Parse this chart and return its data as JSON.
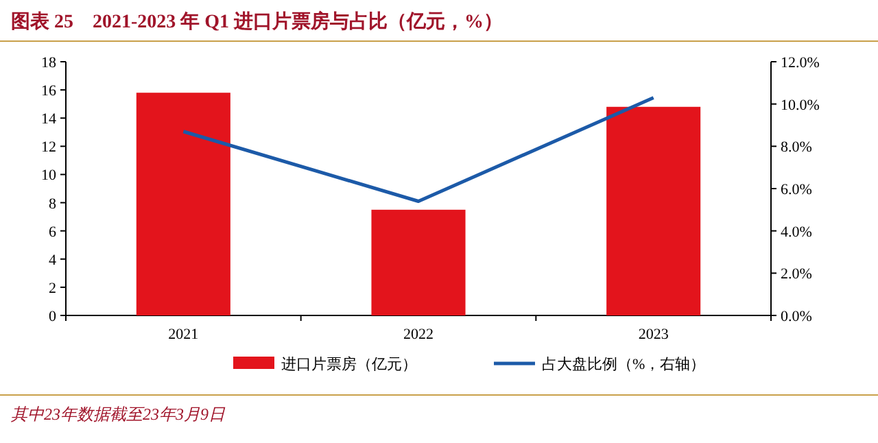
{
  "chart_data": {
    "type": "bar",
    "title": "图表 25　2021-2023 年 Q1 进口片票房与占比（亿元，%）",
    "categories": [
      "2021",
      "2022",
      "2023"
    ],
    "series": [
      {
        "name": "进口片票房（亿元）",
        "color": "#e3141c",
        "values": [
          15.8,
          7.5,
          14.8
        ]
      },
      {
        "name": "占大盘比例（%，右轴）",
        "type": "line",
        "axis": "y2",
        "color": "#1c5aa8",
        "values": [
          8.7,
          5.4,
          10.3
        ]
      }
    ],
    "ylim": [
      0,
      18
    ],
    "yticks": [
      0,
      2,
      4,
      6,
      8,
      10,
      12,
      14,
      16,
      18
    ],
    "y2lim": [
      0,
      12
    ],
    "y2ticks": [
      {
        "value": 0,
        "label": "0.0%"
      },
      {
        "value": 2,
        "label": "2.0%"
      },
      {
        "value": 4,
        "label": "4.0%"
      },
      {
        "value": 6,
        "label": "6.0%"
      },
      {
        "value": 8,
        "label": "8.0%"
      },
      {
        "value": 10,
        "label": "10.0%"
      },
      {
        "value": 12,
        "label": "12.0%"
      }
    ],
    "legend": "bottom",
    "annotations": [
      "其中23年数据截至23年3月9日"
    ]
  }
}
